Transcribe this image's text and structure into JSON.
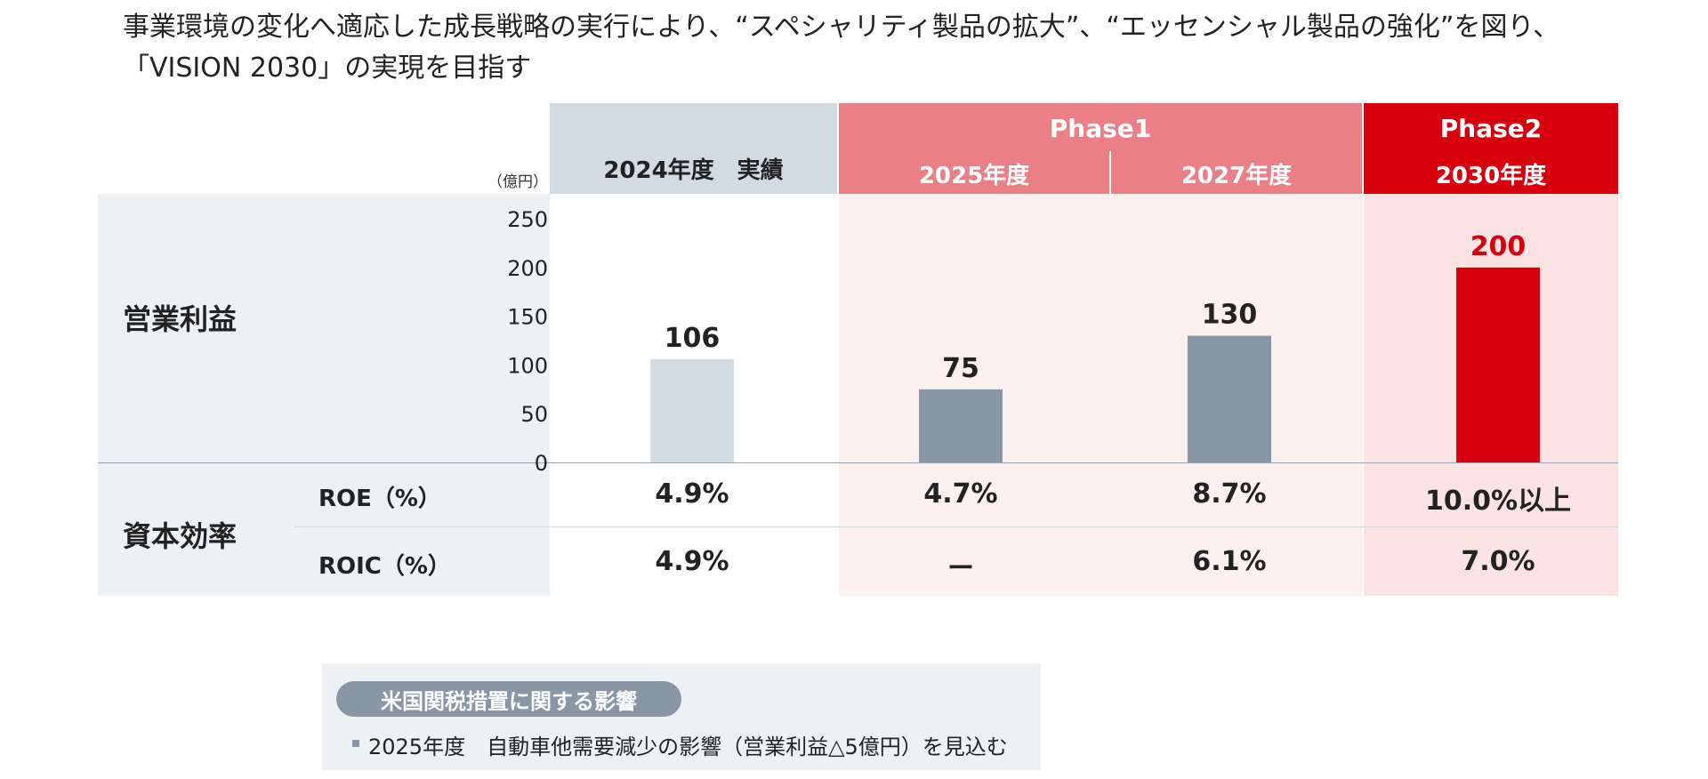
{
  "headline": {
    "line1": "事業環境の変化へ適応した成長戦略の実行により、“スペシャリティ製品の拡大”、“エッセンシャル製品の強化”を図り、",
    "line2": "「VISION 2030」の実現を目指す"
  },
  "header": {
    "unit": "（億円）",
    "actual_col": "2024年度　実績",
    "phase1": "Phase1",
    "phase2": "Phase2",
    "col_2025": "2025年度",
    "col_2027": "2027年度",
    "col_2030": "2030年度"
  },
  "rows": {
    "operating_profit": "営業利益",
    "capital_efficiency": "資本効率",
    "roe_label": "ROE（%）",
    "roic_label": "ROIC（%）"
  },
  "chart_data": {
    "type": "bar",
    "title": "",
    "ylabel": "（億円）",
    "ylim": [
      0,
      250
    ],
    "yticks": [
      "0",
      "50",
      "100",
      "150",
      "200",
      "250"
    ],
    "categories": [
      "2024年度　実績",
      "2025年度",
      "2027年度",
      "2030年度"
    ],
    "values": [
      106,
      75,
      130,
      200
    ],
    "value_labels": [
      "106",
      "75",
      "130",
      "200"
    ],
    "colors": [
      "#d3dbe2",
      "#8896a6",
      "#8896a6",
      "#d9000d"
    ]
  },
  "metrics": {
    "roe": [
      "4.9%",
      "4.7%",
      "8.7%",
      "10.0%以上"
    ],
    "roic": [
      "4.9%",
      "ー",
      "6.1%",
      "7.0%"
    ]
  },
  "note": {
    "title": "米国関税措置に関する影響",
    "text": "2025年度　自動車他需要減少の影響（営業利益△5億円）を見込む"
  },
  "colors": {
    "actual_header": "#d3dbe2",
    "phase1_header": "#eb7f86",
    "phase2_header": "#d9000d",
    "phase1_bg": "#fcefef",
    "phase2_bg": "#fbe3e4",
    "label_bg": "#eef1f4"
  }
}
